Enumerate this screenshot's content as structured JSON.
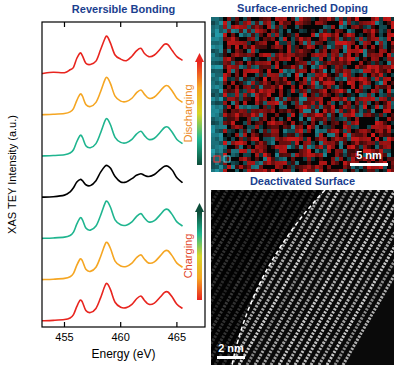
{
  "chart_data": {
    "type": "line",
    "title": "Reversible Bonding",
    "x_label": "Energy (eV)",
    "y_label": "XAS TEY Intensity (a.u.)",
    "x": [
      453,
      454,
      455,
      455.5,
      455.8,
      456.1,
      456.4,
      456.6,
      456.9,
      457.3,
      457.8,
      458.2,
      458.6,
      458.8,
      459.1,
      459.5,
      460,
      460.5,
      461,
      461.4,
      461.8,
      462.1,
      462.5,
      463,
      463.5,
      463.9,
      464.2,
      464.6,
      465,
      465.5
    ],
    "xlim": [
      453,
      467.5
    ],
    "xticks": [
      455,
      460,
      465
    ],
    "ylim": [
      0,
      7.4
    ],
    "tick_labels": "x",
    "annotations": [
      "Charging",
      "Discharging"
    ],
    "series": [
      {
        "color": "#e8251f",
        "values": [
          0.15,
          0.16,
          0.18,
          0.22,
          0.3,
          0.5,
          0.65,
          0.6,
          0.4,
          0.35,
          0.45,
          0.7,
          1.0,
          1.05,
          0.9,
          0.6,
          0.48,
          0.47,
          0.55,
          0.68,
          0.75,
          0.65,
          0.55,
          0.58,
          0.72,
          0.84,
          0.85,
          0.72,
          0.55,
          0.45
        ]
      },
      {
        "color": "#f5a623",
        "values": [
          1.15,
          1.16,
          1.18,
          1.22,
          1.3,
          1.5,
          1.65,
          1.6,
          1.4,
          1.35,
          1.45,
          1.7,
          2.0,
          2.05,
          1.9,
          1.6,
          1.48,
          1.47,
          1.55,
          1.68,
          1.75,
          1.65,
          1.55,
          1.58,
          1.72,
          1.84,
          1.85,
          1.72,
          1.55,
          1.45
        ]
      },
      {
        "color": "#1fb58f",
        "values": [
          2.15,
          2.16,
          2.18,
          2.22,
          2.3,
          2.5,
          2.65,
          2.6,
          2.4,
          2.35,
          2.45,
          2.7,
          3.0,
          3.05,
          2.9,
          2.6,
          2.48,
          2.47,
          2.55,
          2.68,
          2.75,
          2.65,
          2.55,
          2.58,
          2.72,
          2.84,
          2.85,
          2.72,
          2.55,
          2.45
        ]
      },
      {
        "color": "#000000",
        "values": [
          3.15,
          3.16,
          3.2,
          3.28,
          3.38,
          3.52,
          3.58,
          3.55,
          3.45,
          3.43,
          3.55,
          3.75,
          3.9,
          3.92,
          3.85,
          3.65,
          3.52,
          3.52,
          3.6,
          3.68,
          3.72,
          3.68,
          3.65,
          3.7,
          3.82,
          3.9,
          3.9,
          3.8,
          3.62,
          3.5
        ]
      },
      {
        "color": "#1fb58f",
        "values": [
          4.15,
          4.16,
          4.18,
          4.22,
          4.3,
          4.5,
          4.65,
          4.6,
          4.4,
          4.35,
          4.45,
          4.7,
          5.0,
          5.05,
          4.9,
          4.6,
          4.48,
          4.47,
          4.55,
          4.68,
          4.75,
          4.65,
          4.55,
          4.58,
          4.72,
          4.84,
          4.85,
          4.72,
          4.55,
          4.45
        ]
      },
      {
        "color": "#f5a623",
        "values": [
          5.15,
          5.16,
          5.18,
          5.22,
          5.3,
          5.5,
          5.65,
          5.6,
          5.4,
          5.35,
          5.45,
          5.7,
          6.0,
          6.05,
          5.9,
          5.6,
          5.48,
          5.47,
          5.55,
          5.68,
          5.75,
          5.65,
          5.55,
          5.58,
          5.72,
          5.84,
          5.85,
          5.72,
          5.55,
          5.45
        ]
      },
      {
        "color": "#e8251f",
        "values": [
          6.15,
          6.18,
          6.17,
          6.24,
          6.3,
          6.52,
          6.65,
          6.58,
          6.4,
          6.37,
          6.45,
          6.72,
          7.0,
          7.05,
          6.88,
          6.6,
          6.5,
          6.46,
          6.57,
          6.7,
          6.76,
          6.64,
          6.56,
          6.6,
          6.74,
          6.86,
          6.85,
          6.7,
          6.56,
          6.47
        ]
      }
    ]
  },
  "panels": [
    {
      "title": "Surface-enriched Doping",
      "scale_bar": "5 nm"
    },
    {
      "title": "Deactivated Surface",
      "scale_bar": "2 nm"
    }
  ]
}
